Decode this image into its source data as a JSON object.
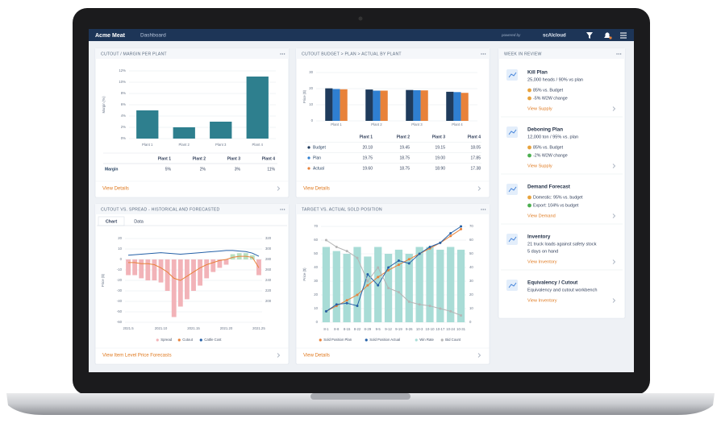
{
  "header": {
    "brand": "Acme Meat",
    "nav": "Dashboard",
    "powered_by": "powered by",
    "vendor": "scAIcloud"
  },
  "chart_data": [
    {
      "type": "bar",
      "title": "CUTOUT / MARGIN PER PLANT",
      "ylabel": "Margin (%)",
      "categories": [
        "Plant 1",
        "Plant 2",
        "Plant 3",
        "Plant 4"
      ],
      "values": [
        5,
        2,
        3,
        11
      ],
      "value_labels": [
        "5%",
        "2%",
        "3%",
        "11%"
      ],
      "color": "#2e7f8e",
      "ylim": [
        0,
        12
      ],
      "yticks": [
        {
          "value": 0,
          "label": "0%"
        },
        {
          "value": 2,
          "label": "2%"
        },
        {
          "value": 4,
          "label": "4%"
        },
        {
          "value": 6,
          "label": "6%"
        },
        {
          "value": 8,
          "label": "8%"
        },
        {
          "value": 10,
          "label": "10%"
        },
        {
          "value": 12,
          "label": "12%"
        }
      ],
      "grid": true,
      "table": {
        "row_label": "Margin"
      },
      "link": "View Details"
    },
    {
      "type": "bar",
      "title": "CUTOUT BUDGET > PLAN > ACTUAL BY PLANT",
      "ylabel": "Price ($)",
      "categories": [
        "Plant 1",
        "Plant 2",
        "Plant 3",
        "Plant 4"
      ],
      "series": [
        {
          "name": "Budget",
          "color": "#1f3b5c",
          "values": [
            20.18,
            19.45,
            19.15,
            18.05
          ],
          "value_labels": [
            "20.18",
            "19.45",
            "19.15",
            "18.05"
          ]
        },
        {
          "name": "Plan",
          "color": "#2f7fd1",
          "values": [
            19.75,
            18.75,
            19.0,
            17.85
          ],
          "value_labels": [
            "19.75",
            "18.75",
            "19.00",
            "17.85"
          ]
        },
        {
          "name": "Actual",
          "color": "#e8823a",
          "values": [
            19.6,
            18.75,
            18.9,
            17.38
          ],
          "value_labels": [
            "19.60",
            "18.75",
            "18.90",
            "17.38"
          ]
        }
      ],
      "ylim": [
        0,
        30
      ],
      "yticks": [
        0,
        10,
        20,
        30
      ],
      "grid": true,
      "link": "View Details"
    },
    {
      "type": "combo",
      "title": "CUTOUT VS. SPREAD - HISTORICAL AND FORECASTED",
      "tabs": [
        "Chart",
        "Data"
      ],
      "ylabel": "Price ($)",
      "categories": [
        "2021.5",
        null,
        null,
        null,
        null,
        "2021.10",
        null,
        null,
        null,
        null,
        "2021.15",
        null,
        null,
        null,
        null,
        "2021.20",
        null,
        null,
        null,
        null,
        "2021.25"
      ],
      "series": [
        {
          "name": "Spread",
          "kind": "bar",
          "color": "#f2b3b8",
          "positive_color": "#b9e0c0",
          "values": [
            -15,
            -15,
            -18,
            -20,
            -20,
            -22,
            -30,
            -55,
            -45,
            -38,
            -30,
            -25,
            -18,
            -12,
            -8,
            -5,
            5,
            6,
            6,
            4,
            -15
          ]
        },
        {
          "name": "Cutout",
          "kind": "line",
          "color": "#e8823a",
          "values": [
            -3,
            -3,
            -4,
            -4,
            -5,
            -8,
            -12,
            -18,
            -20,
            -16,
            -12,
            -8,
            -5,
            -3,
            -1,
            0,
            2,
            3,
            3,
            2,
            -8
          ]
        },
        {
          "name": "Cattle Cost",
          "kind": "line",
          "axis": "y2",
          "color": "#2460a7",
          "values": [
            288,
            289,
            290,
            291,
            292,
            293,
            292,
            291,
            290,
            291,
            292,
            293,
            294,
            295,
            296,
            297,
            297,
            296,
            295,
            292,
            286
          ]
        }
      ],
      "ylim": [
        -60,
        20
      ],
      "yticks": [
        20,
        10,
        0,
        -10,
        -20,
        -30,
        -40,
        -50,
        -60
      ],
      "y2lim": [
        160,
        320
      ],
      "y2ticks": [
        320,
        300,
        280,
        260,
        240,
        220,
        200
      ],
      "grid": true,
      "link": "View Item Level Price Forecasts"
    },
    {
      "type": "combo",
      "title": "TARGET VS. ACTUAL SOLD POSITION",
      "ylabel": "Price ($)",
      "categories": [
        "8-1",
        "8-8",
        "8-15",
        "8-22",
        "8-29",
        "9-5",
        "9-12",
        "9-19",
        "9-26",
        "10-3",
        "10-10",
        "10-17",
        "10-24",
        "10-31"
      ],
      "series": [
        {
          "name": "Sold Position Plan",
          "kind": "line",
          "markers": true,
          "color": "#e8823a",
          "values": [
            8,
            12,
            16,
            20,
            27,
            33,
            38,
            42,
            46,
            50,
            54,
            58,
            63,
            68
          ]
        },
        {
          "name": "Sold Position Actual",
          "kind": "line",
          "markers": true,
          "color": "#2460a7",
          "values": [
            8,
            13,
            14,
            12,
            35,
            27,
            40,
            45,
            43,
            50,
            55,
            58,
            65,
            70
          ]
        },
        {
          "name": "Win Rate",
          "kind": "bar",
          "axis": "y2",
          "color": "#a8dcd6",
          "values": [
            55,
            52,
            50,
            55,
            48,
            55,
            50,
            53,
            50,
            55,
            55,
            53,
            55,
            53
          ]
        },
        {
          "name": "Bid Count",
          "kind": "line",
          "markers": true,
          "color": "#b5b5b5",
          "values": [
            60,
            55,
            52,
            47,
            30,
            40,
            25,
            22,
            15,
            13,
            12,
            10,
            8,
            5
          ]
        }
      ],
      "ylim": [
        0,
        70
      ],
      "yticks": [
        0,
        10,
        20,
        30,
        40,
        50,
        60,
        70
      ],
      "y2lim": [
        0,
        70
      ],
      "y2ticks": [
        0,
        10,
        20,
        30,
        40,
        50,
        60,
        70
      ],
      "grid": true,
      "link": "View Details"
    }
  ],
  "week_in_review": {
    "title": "WEEK IN REVIEW",
    "items": [
      {
        "title": "Kill Plan",
        "lines": [
          "25,000 heads / 90% vs plan"
        ],
        "bullets": [
          {
            "text": "85% vs. Budget",
            "color": "#e8a33d"
          },
          {
            "text": "-5% W2W change",
            "color": "#e8a33d"
          }
        ],
        "link": "View Supply"
      },
      {
        "title": "Deboning Plan",
        "lines": [
          "12,000 ton / 95% vs. plan"
        ],
        "bullets": [
          {
            "text": "85% vs. Budget",
            "color": "#e8a33d"
          },
          {
            "text": "-2% W2W change",
            "color": "#4caf50"
          }
        ],
        "link": "View Supply"
      },
      {
        "title": "Demand Forecast",
        "lines": [],
        "bullets": [
          {
            "text": "Domestic: 95% vs. budget",
            "color": "#e8a33d"
          },
          {
            "text": "Export: 104% vs budget",
            "color": "#4caf50"
          }
        ],
        "link": "View Demand"
      },
      {
        "title": "Inventory",
        "lines": [
          "21 truck loads against safety stock",
          "5 days on hand"
        ],
        "bullets": [],
        "link": "View Inventory"
      },
      {
        "title": "Equivalency / Cutout",
        "lines": [
          "Equivalency and cutout workbench"
        ],
        "bullets": [],
        "link": "View Inventory"
      }
    ]
  }
}
